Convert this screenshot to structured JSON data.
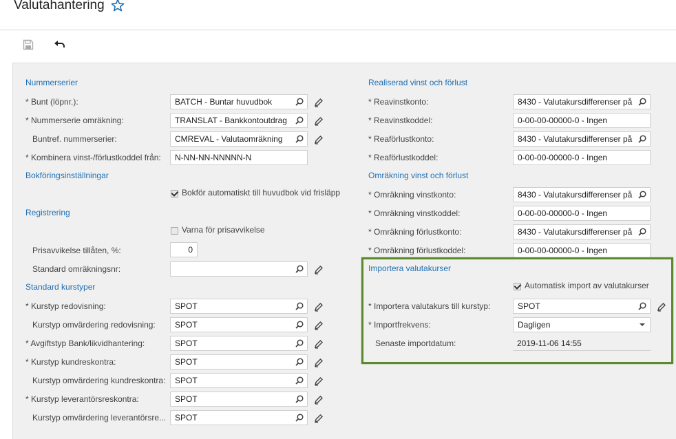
{
  "header": {
    "title": "Valutahantering"
  },
  "left": {
    "sec1": "Nummerserier",
    "bunt_label": "Bunt (löpnr.):",
    "bunt_value": "BATCH - Buntar huvudbok",
    "nummer_omr_label": "Nummerserie omräkning:",
    "nummer_omr_value": "TRANSLAT - Bankkontoutdrag",
    "buntref_label": "Buntref. nummerserier:",
    "buntref_value": "CMREVAL - Valutaomräkning",
    "kombinera_label": "Kombinera vinst-/förlustkoddel från:",
    "kombinera_value": "N-NN-NN-NNNNN-N",
    "sec2": "Bokföringsinställningar",
    "bokfor_label": "Bokför automatiskt till huvudbok vid frisläpp",
    "sec3": "Registrering",
    "varna_label": "Varna för prisavvikelse",
    "prisavv_label": "Prisavvikelse tillåten, %:",
    "prisavv_value": "0",
    "std_omr_label": "Standard omräkningsnr:",
    "std_omr_value": "",
    "sec4": "Standard kurstyper",
    "kt_redov_label": "Kurstyp redovisning:",
    "kt_redov_value": "SPOT",
    "kt_omv_redov_label": "Kurstyp omvärdering redovisning:",
    "kt_omv_redov_value": "SPOT",
    "avg_bank_label": "Avgiftstyp Bank/likvidhantering:",
    "avg_bank_value": "SPOT",
    "kt_kund_label": "Kurstyp kundreskontra:",
    "kt_kund_value": "SPOT",
    "kt_omv_kund_label": "Kurstyp omvärdering kundreskontra:",
    "kt_omv_kund_value": "SPOT",
    "kt_lev_label": "Kurstyp leverantörsreskontra:",
    "kt_lev_value": "SPOT",
    "kt_omv_lev_label": "Kurstyp omvärdering leverantörsre...",
    "kt_omv_lev_value": "SPOT"
  },
  "right": {
    "sec1": "Realiserad vinst och förlust",
    "reavinst_label": "Reavinstkonto:",
    "reavinst_value": "8430 - Valutakursdifferenser på",
    "reavinstkod_label": "Reavinstkoddel:",
    "reavinstkod_value": "0-00-00-00000-0 - Ingen",
    "reaforl_label": "Reaförlustkonto:",
    "reaforl_value": "8430 - Valutakursdifferenser på",
    "reaforlkod_label": "Reaförlustkoddel:",
    "reaforlkod_value": "0-00-00-00000-0 - Ingen",
    "sec2": "Omräkning vinst och förlust",
    "omr_vinst_label": "Omräkning vinstkonto:",
    "omr_vinst_value": "8430 - Valutakursdifferenser på",
    "omr_vinstkod_label": "Omräkning vinstkoddel:",
    "omr_vinstkod_value": "0-00-00-00000-0 - Ingen",
    "omr_forl_label": "Omräkning förlustkonto:",
    "omr_forl_value": "8430 - Valutakursdifferenser på",
    "omr_forlkod_label": "Omräkning förlustkoddel:",
    "omr_forlkod_value": "0-00-00-00000-0 - Ingen",
    "sec3": "Importera valutakurser",
    "auto_import_label": "Automatisk import av valutakurser",
    "imp_kurstyp_label": "Importera valutakurs till kurstyp:",
    "imp_kurstyp_value": "SPOT",
    "imp_frek_label": "Importfrekvens:",
    "imp_frek_value": "Dagligen",
    "senaste_label": "Senaste importdatum:",
    "senaste_value": "2019-11-06 14:55"
  },
  "colors": {
    "accent": "#1f6fb2",
    "highlight": "#5a8a2c"
  }
}
